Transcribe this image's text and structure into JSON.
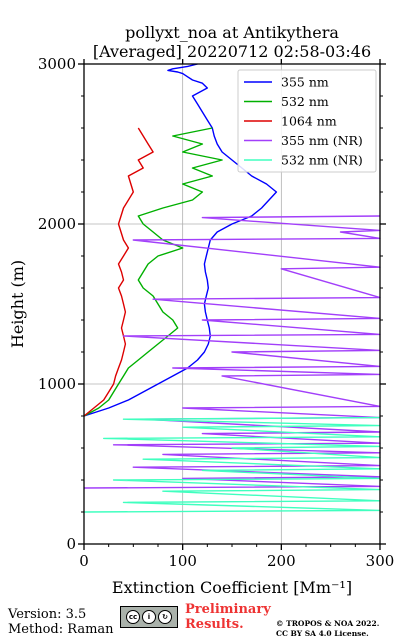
{
  "header": {
    "title_line1": "pollyxt_noa at Antikythera",
    "title_line2": "[Averaged] 20220712 02:58-03:46"
  },
  "footer": {
    "version": "Version: 3.5",
    "method": "Method: Raman",
    "preliminary_line1": "Preliminary",
    "preliminary_line2": "Results.",
    "copyright_line1": "© TROPOS & NOA 2022.",
    "copyright_line2": "CC BY SA 4.0 License.",
    "license_icon": "cc-by-sa-icon",
    "license_text": "BY  SA"
  },
  "chart_data": {
    "type": "line",
    "xlabel": "Extinction Coefficient [Mm⁻¹]",
    "ylabel": "Height (m)",
    "xlim": [
      0,
      300
    ],
    "ylim": [
      0,
      3000
    ],
    "xticks": [
      0,
      100,
      200,
      300
    ],
    "yticks": [
      0,
      1000,
      2000,
      3000
    ],
    "grid": true,
    "legend_position": "top-right",
    "series": [
      {
        "name": "355 nm",
        "color": "#0000ff",
        "x": [
          0,
          25,
          45,
          60,
          75,
          90,
          105,
          115,
          122,
          126,
          128,
          127,
          125,
          123,
          122,
          124,
          126,
          125,
          123,
          122,
          124,
          126,
          128,
          135,
          150,
          170,
          180,
          195,
          185,
          170,
          160,
          150,
          140,
          135,
          132,
          130,
          125,
          120,
          115,
          110,
          125,
          120,
          110,
          105,
          100,
          95,
          85,
          90,
          105,
          115
        ],
        "y": [
          800,
          850,
          900,
          950,
          1000,
          1050,
          1100,
          1150,
          1200,
          1250,
          1300,
          1350,
          1400,
          1450,
          1500,
          1550,
          1600,
          1650,
          1700,
          1750,
          1800,
          1850,
          1900,
          1950,
          2000,
          2050,
          2100,
          2200,
          2250,
          2300,
          2350,
          2400,
          2450,
          2500,
          2550,
          2600,
          2650,
          2700,
          2750,
          2800,
          2850,
          2880,
          2900,
          2920,
          2940,
          2950,
          2960,
          2970,
          2985,
          3000
        ]
      },
      {
        "name": "532 nm",
        "color": "#00b000",
        "x": [
          0,
          15,
          25,
          30,
          35,
          40,
          45,
          55,
          65,
          75,
          85,
          95,
          90,
          80,
          75,
          70,
          60,
          55,
          60,
          65,
          75,
          100,
          80,
          70,
          60,
          55,
          80,
          110,
          120,
          100,
          130,
          110,
          140,
          100,
          120,
          90,
          130
        ],
        "y": [
          800,
          850,
          900,
          950,
          1000,
          1050,
          1100,
          1150,
          1200,
          1250,
          1300,
          1350,
          1400,
          1450,
          1500,
          1550,
          1600,
          1650,
          1700,
          1750,
          1800,
          1850,
          1900,
          1950,
          2000,
          2050,
          2100,
          2150,
          2200,
          2250,
          2300,
          2350,
          2400,
          2450,
          2500,
          2550,
          2600
        ]
      },
      {
        "name": "1064 nm",
        "color": "#dd0000",
        "x": [
          0,
          10,
          20,
          25,
          30,
          32,
          35,
          38,
          40,
          42,
          40,
          38,
          40,
          42,
          40,
          38,
          35,
          40,
          38,
          35,
          40,
          45,
          40,
          35,
          40,
          50,
          45,
          60,
          55,
          70,
          65,
          60,
          55
        ],
        "y": [
          800,
          850,
          900,
          950,
          1000,
          1050,
          1100,
          1150,
          1200,
          1250,
          1300,
          1350,
          1400,
          1450,
          1500,
          1550,
          1600,
          1650,
          1700,
          1750,
          1800,
          1850,
          1900,
          2000,
          2100,
          2200,
          2300,
          2350,
          2400,
          2450,
          2500,
          2550,
          2600
        ]
      },
      {
        "name": "355 nm (NR)",
        "color": "#a23ffa",
        "x": [
          0,
          300,
          100,
          300,
          50,
          300,
          80,
          300,
          30,
          300,
          120,
          300,
          60,
          300,
          100,
          300,
          140,
          300,
          90,
          300,
          150,
          300,
          40,
          300,
          120,
          300,
          70,
          300,
          200,
          300,
          50,
          300,
          260,
          300,
          120,
          300
        ],
        "y": [
          350,
          360,
          410,
          420,
          480,
          490,
          560,
          570,
          620,
          630,
          690,
          700,
          780,
          790,
          850,
          860,
          1050,
          1060,
          1100,
          1110,
          1200,
          1210,
          1300,
          1310,
          1400,
          1410,
          1530,
          1540,
          1720,
          1730,
          1900,
          1910,
          1950,
          1960,
          2040,
          2050
        ]
      },
      {
        "name": "532 nm (NR)",
        "color": "#40ffbf",
        "x": [
          0,
          300,
          40,
          300,
          80,
          300,
          30,
          300,
          120,
          300,
          60,
          300,
          150,
          300,
          20,
          300,
          100,
          300,
          40,
          300
        ],
        "y": [
          200,
          210,
          260,
          270,
          330,
          340,
          400,
          410,
          460,
          470,
          530,
          540,
          600,
          610,
          660,
          670,
          730,
          740,
          780,
          790
        ]
      }
    ]
  }
}
